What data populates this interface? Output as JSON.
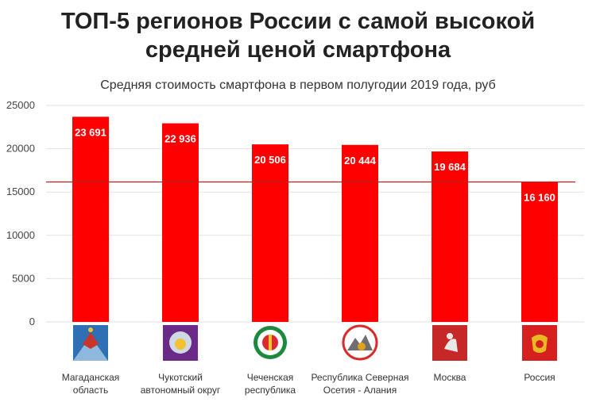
{
  "chart_data": {
    "type": "bar",
    "title_lines": [
      "ТОП-5 регионов России с самой высокой",
      "средней ценой смартфона"
    ],
    "subtitle": "Средняя стоимость смартфона в первом полугодии 2019 года, руб",
    "categories": [
      [
        "Магаданская",
        "область"
      ],
      [
        "Чукотский",
        "автономный округ"
      ],
      [
        "Чеченская",
        "республика"
      ],
      [
        "Республика Северная",
        "Осетия - Алания"
      ],
      [
        "Москва"
      ],
      [
        "Россия"
      ]
    ],
    "values": [
      23691,
      22936,
      20506,
      20444,
      19684,
      16160
    ],
    "value_labels": [
      "23 691",
      "22 936",
      "20 506",
      "20 444",
      "19 684",
      "16 160"
    ],
    "y_ticks": [
      "0",
      "5000",
      "10000",
      "15000",
      "20000",
      "25000"
    ],
    "ylim": [
      0,
      25000
    ],
    "reference_line": 16160,
    "grid": true,
    "bar_color": "#ff0000",
    "reference_line_color": "#b22222",
    "emblems": [
      "magadan-coat-of-arms-icon",
      "chukotka-coat-of-arms-icon",
      "chechnya-coat-of-arms-icon",
      "north-ossetia-coat-of-arms-icon",
      "moscow-coat-of-arms-icon",
      "russia-coat-of-arms-icon"
    ]
  }
}
